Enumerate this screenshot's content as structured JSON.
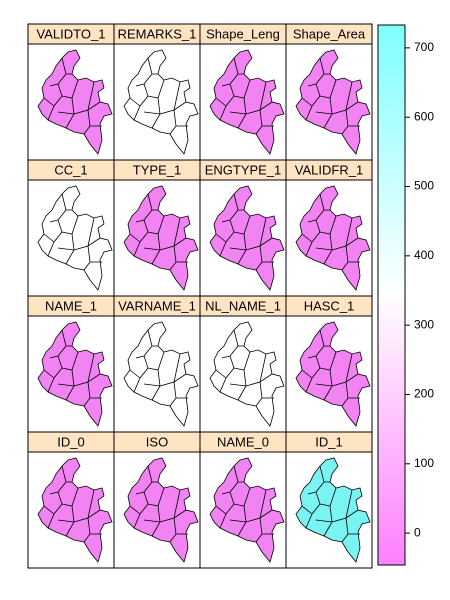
{
  "chart_data": {
    "type": "map",
    "columns": 4,
    "panels": [
      {
        "name": "VALIDTO_1",
        "fill": "#f283f2"
      },
      {
        "name": "REMARKS_1",
        "fill": "#ffffff"
      },
      {
        "name": "Shape_Leng",
        "fill": "#f283f2"
      },
      {
        "name": "Shape_Area",
        "fill": "#f283f2"
      },
      {
        "name": "CC_1",
        "fill": "#ffffff"
      },
      {
        "name": "TYPE_1",
        "fill": "#f283f2"
      },
      {
        "name": "ENGTYPE_1",
        "fill": "#f283f2"
      },
      {
        "name": "VALIDFR_1",
        "fill": "#f283f2"
      },
      {
        "name": "NAME_1",
        "fill": "#f283f2"
      },
      {
        "name": "VARNAME_1",
        "fill": "#ffffff"
      },
      {
        "name": "NL_NAME_1",
        "fill": "#ffffff"
      },
      {
        "name": "HASC_1",
        "fill": "#f283f2"
      },
      {
        "name": "ID_0",
        "fill": "#f283f2"
      },
      {
        "name": "ISO",
        "fill": "#f283f2"
      },
      {
        "name": "NAME_0",
        "fill": "#f283f2"
      },
      {
        "name": "ID_1",
        "fill": "#7af3f3"
      }
    ],
    "colorbar": {
      "ylim": [
        -46,
        733
      ],
      "yticks": [
        0,
        100,
        200,
        300,
        400,
        500,
        600,
        700
      ],
      "colors": [
        "#ff80ff",
        "#ffffff",
        "#80ffff"
      ]
    }
  }
}
